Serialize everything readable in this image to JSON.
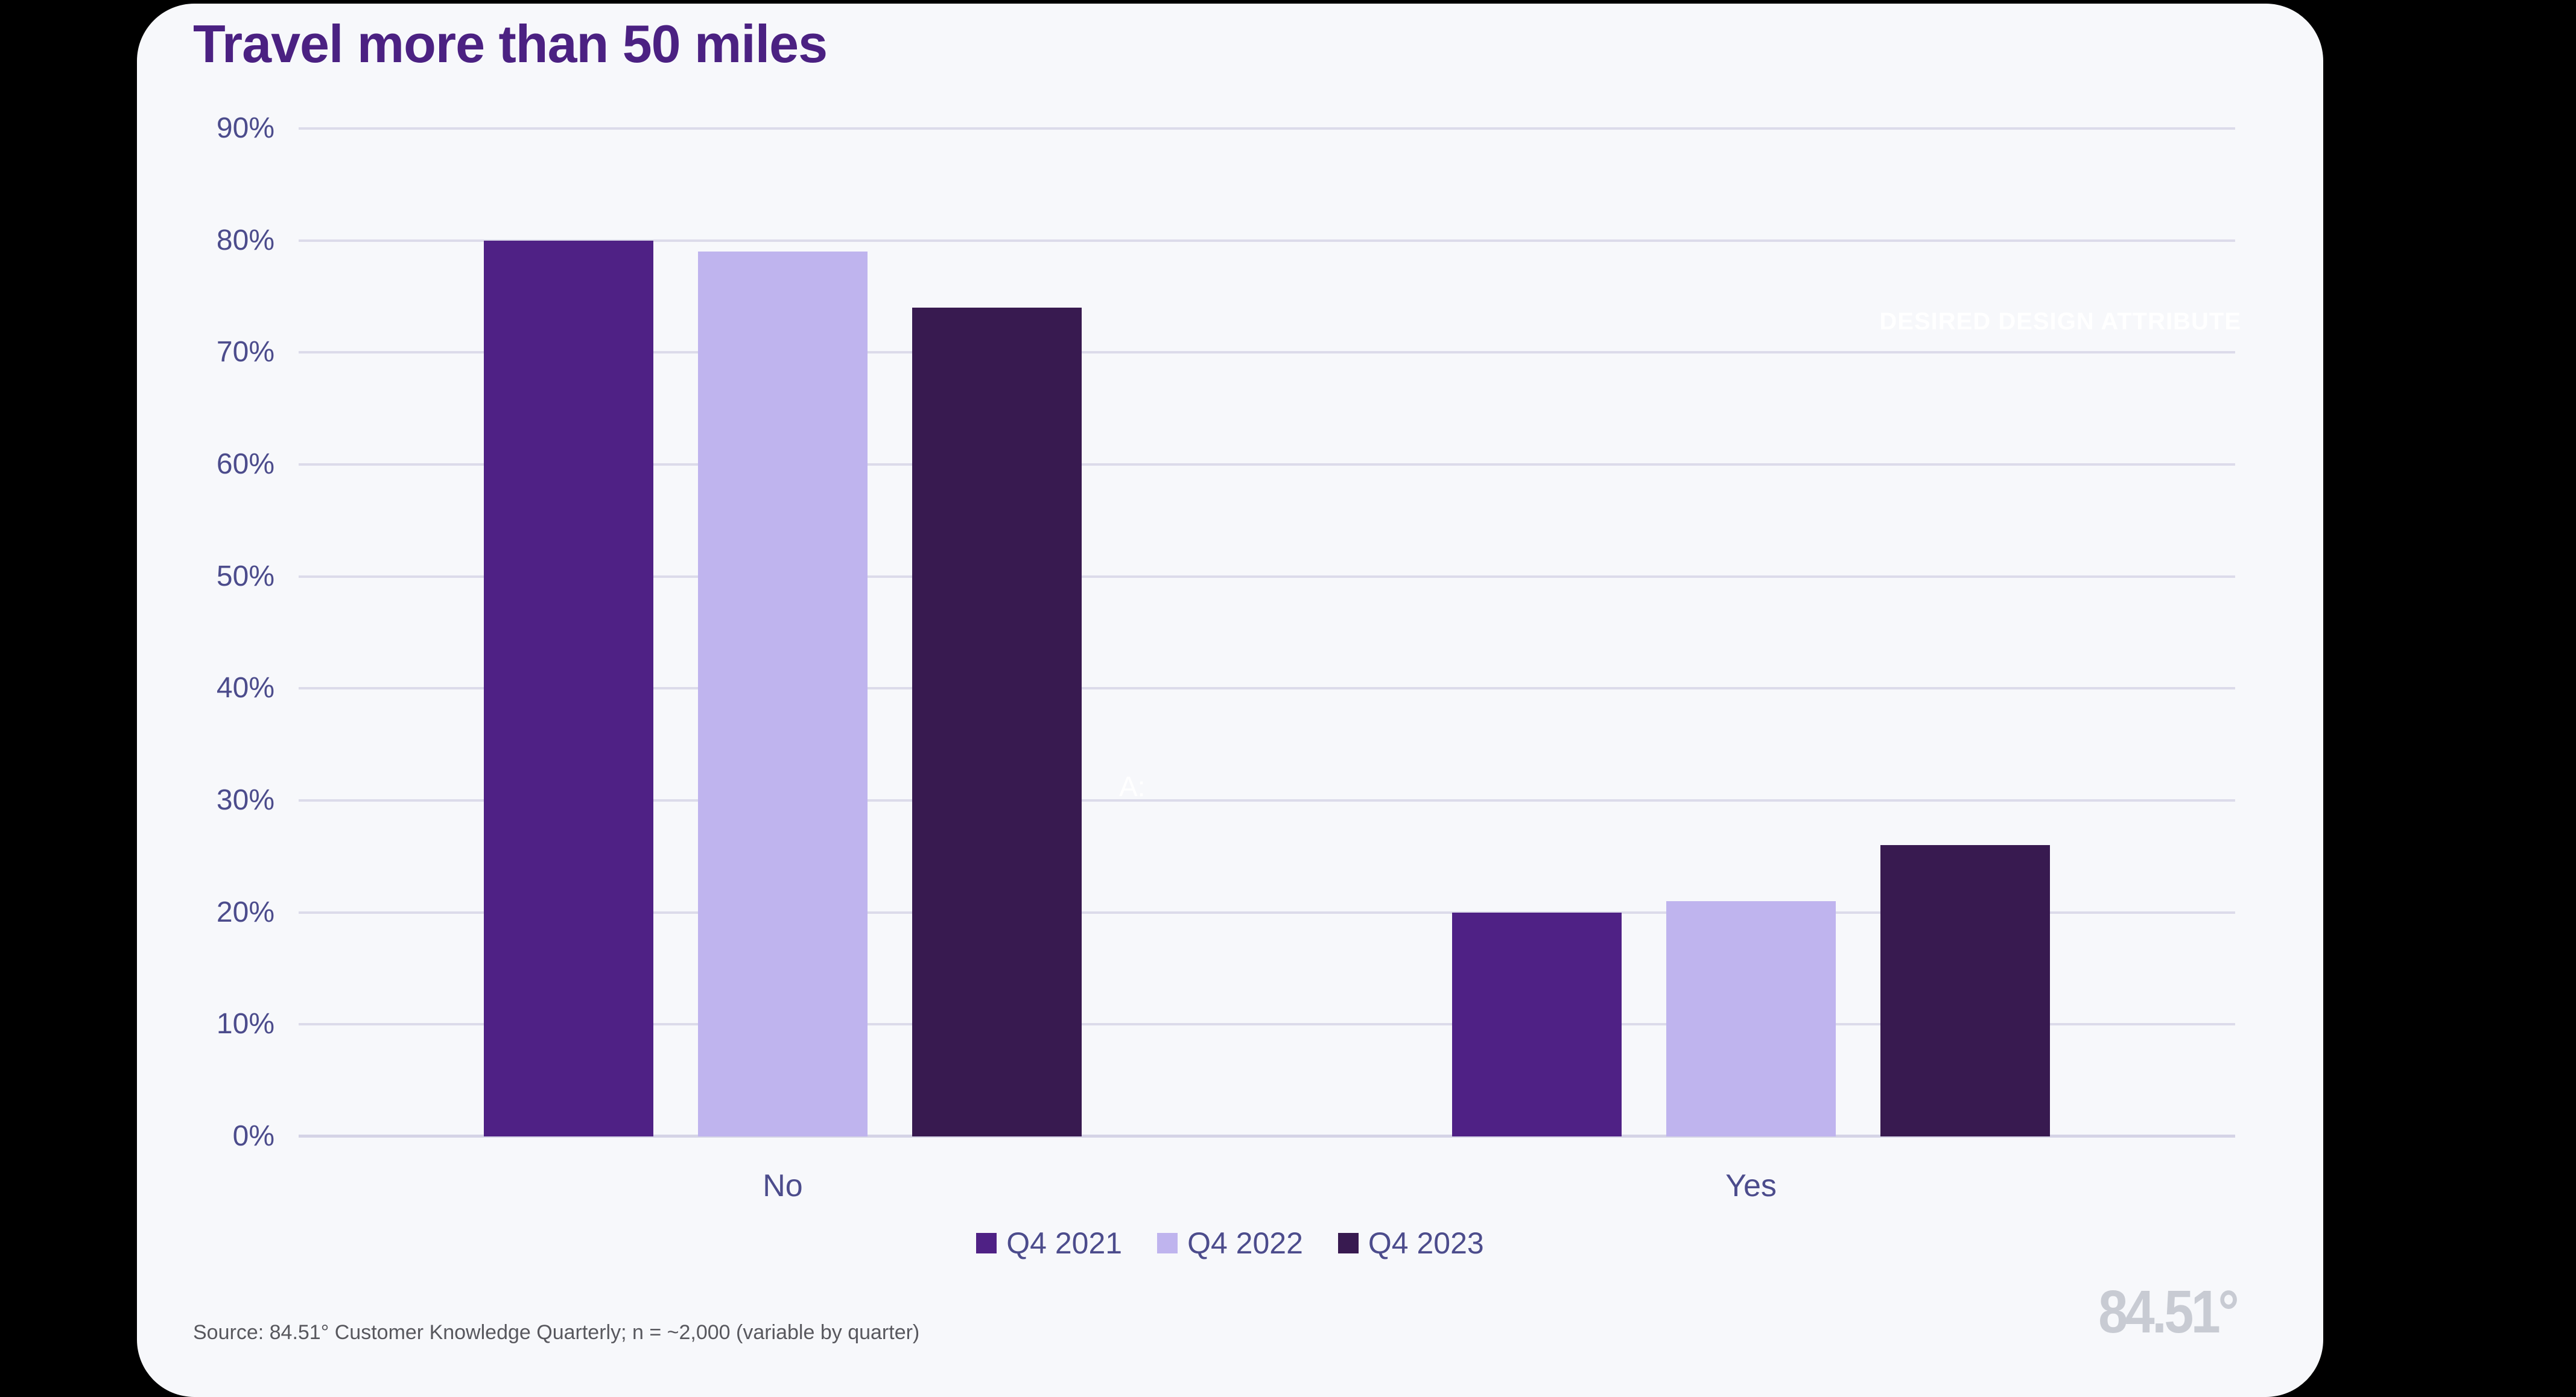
{
  "title": "Travel more than 50 miles",
  "watermarks": {
    "top_right": "DESIRED DESIGN ATTRIBUTE",
    "plot": "A:"
  },
  "footer": {
    "source": "Source: 84.51° Customer Knowledge Quarterly; n = ~2,000 (variable by quarter)",
    "logo": "84.51°"
  },
  "colors": {
    "page_background": "#000000",
    "card_background": "#F7F8FB",
    "title_text": "#4B2182",
    "axis_text": "#4C4C8C",
    "gridline": "#DCDBEA",
    "axis_line": "#D5D4E6",
    "source_text": "#58585E",
    "logo_text": "#C8CBD3",
    "watermark_text": "#FFFFFF"
  },
  "chart_data": {
    "type": "bar",
    "title": "Travel more than 50 miles",
    "categories": [
      "No",
      "Yes"
    ],
    "series": [
      {
        "name": "Q4 2021",
        "color": "#4F2185",
        "values": [
          80,
          20
        ]
      },
      {
        "name": "Q4 2022",
        "color": "#BFB4EE",
        "values": [
          79,
          21
        ]
      },
      {
        "name": "Q4 2023",
        "color": "#381A50",
        "values": [
          74,
          26
        ]
      }
    ],
    "xlabel": "",
    "ylabel": "",
    "ylim": [
      0,
      90
    ],
    "ytick_step": 10,
    "ytick_suffix": "%",
    "grid": true,
    "legend_position": "bottom",
    "group_centers_pct": [
      25,
      75
    ]
  }
}
